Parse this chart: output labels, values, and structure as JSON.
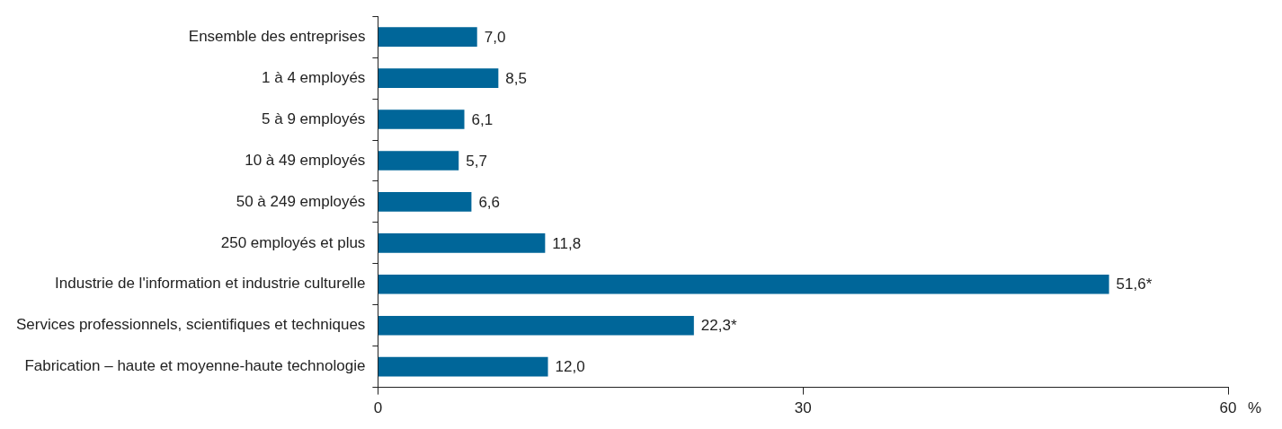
{
  "chart_data": {
    "type": "bar",
    "orientation": "horizontal",
    "xlabel": "%",
    "categories": [
      "Ensemble des entreprises",
      "1 à 4 employés",
      "5 à 9 employés",
      "10 à 49 employés",
      "50 à 249 employés",
      "250 employés et plus",
      "Industrie de l'information et industrie culturelle",
      "Services professionnels, scientifiques et techniques",
      "Fabrication – haute et moyenne-haute technologie"
    ],
    "values": [
      7.0,
      8.5,
      6.1,
      5.7,
      6.6,
      11.8,
      51.6,
      22.3,
      12.0
    ],
    "value_labels": [
      "7,0",
      "8,5",
      "6,1",
      "5,7",
      "6,6",
      "11,8",
      "51,6*",
      "22,3*",
      "12,0"
    ],
    "color": "#006699",
    "xlim": [
      0,
      60
    ],
    "xticks": [
      0,
      30,
      60
    ],
    "grid": false,
    "legend": false
  }
}
